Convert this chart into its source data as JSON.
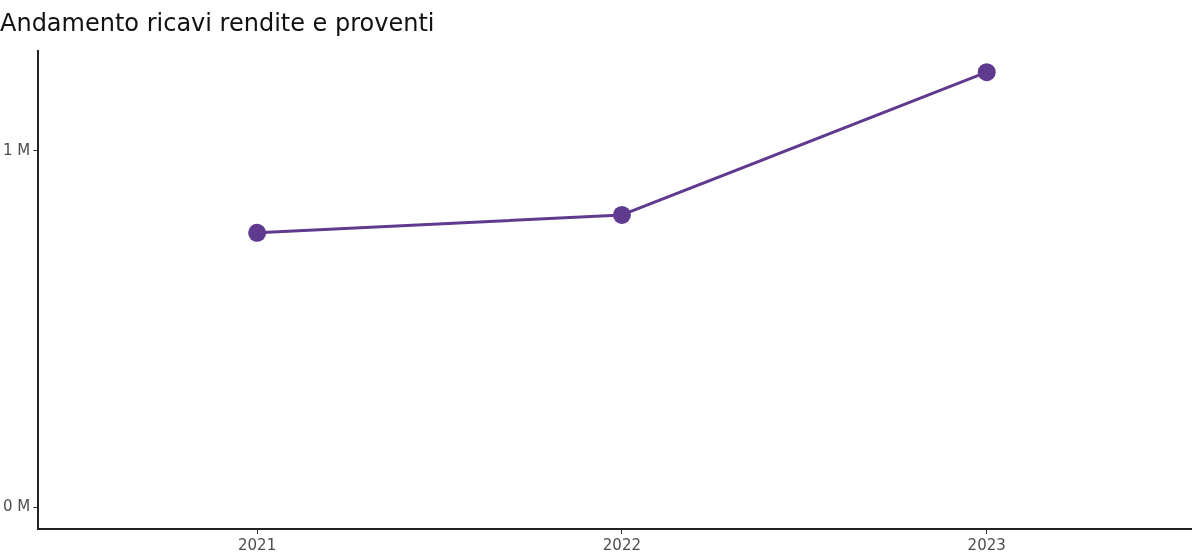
{
  "chart_data": {
    "type": "line",
    "title": "Andamento ricavi rendite e proventi",
    "categories": [
      "2021",
      "2022",
      "2023"
    ],
    "series": [
      {
        "color": "#5f3a8f",
        "values": [
          0.77,
          0.82,
          1.22
        ]
      }
    ],
    "ylim": [
      -0.06,
      1.28
    ],
    "yticks": [
      {
        "value": 0,
        "label": "0 M"
      },
      {
        "value": 1,
        "label": "1 M"
      }
    ],
    "grid": false,
    "legend": false,
    "marker": "circle",
    "line_style": "solid"
  }
}
